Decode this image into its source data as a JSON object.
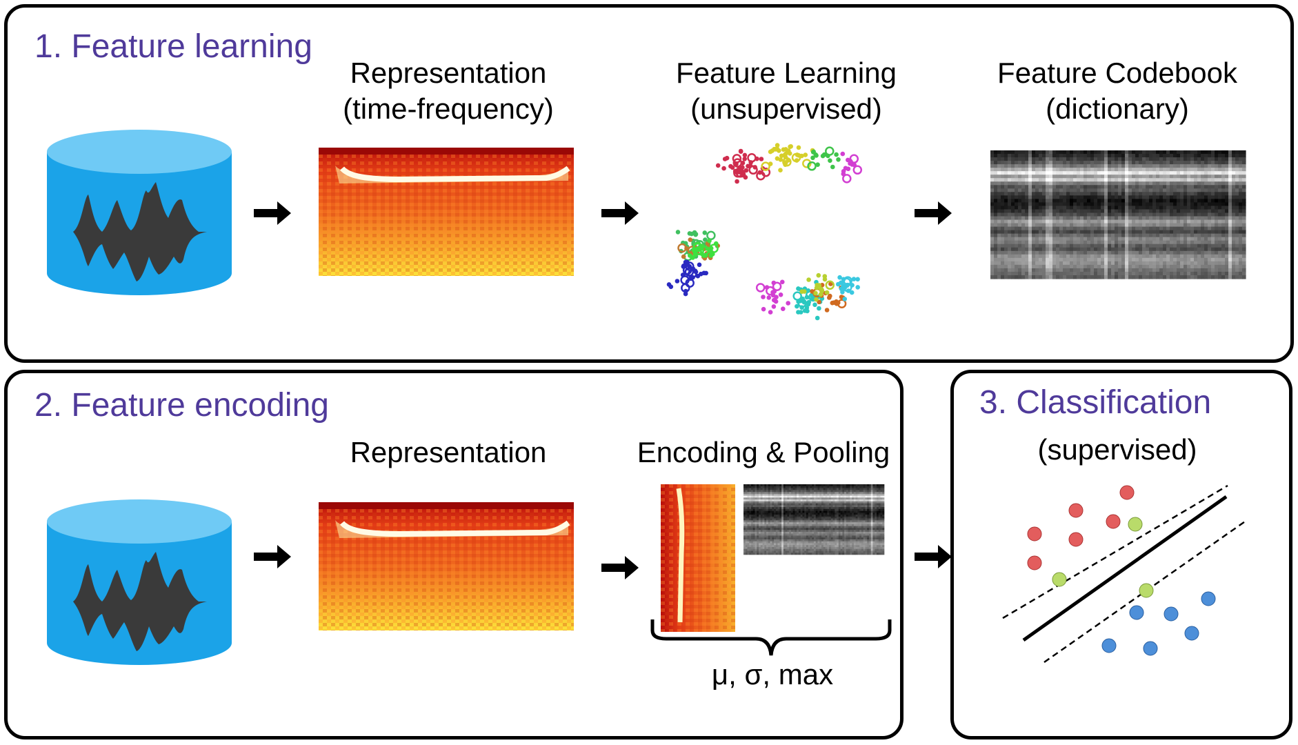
{
  "panel1": {
    "title": "1. Feature learning",
    "representation": {
      "line1": "Representation",
      "line2": "(time-frequency)"
    },
    "learning": {
      "line1": "Feature Learning",
      "line2": "(unsupervised)"
    },
    "codebook": {
      "line1": "Feature Codebook",
      "line2": "(dictionary)"
    }
  },
  "panel2": {
    "title": "2. Feature encoding",
    "representation": "Representation",
    "encoding": "Encoding & Pooling",
    "stats": "μ, σ, max"
  },
  "panel3": {
    "title": "3. Classification",
    "subtitle": "(supervised)"
  },
  "icons": [
    "database-audio-icon",
    "arrow-right-icon",
    "spectrogram",
    "scatter-clusters",
    "codebook-matrix",
    "svm-plot"
  ],
  "colors": {
    "title": "#4f3a9a",
    "database": "#1ba3e8",
    "database_top": "#6fcaf5",
    "waveform": "#3a3a3a",
    "class_red": "#e35d5d",
    "class_blue": "#4d8fd9",
    "support_vector": "#b9db6a"
  }
}
